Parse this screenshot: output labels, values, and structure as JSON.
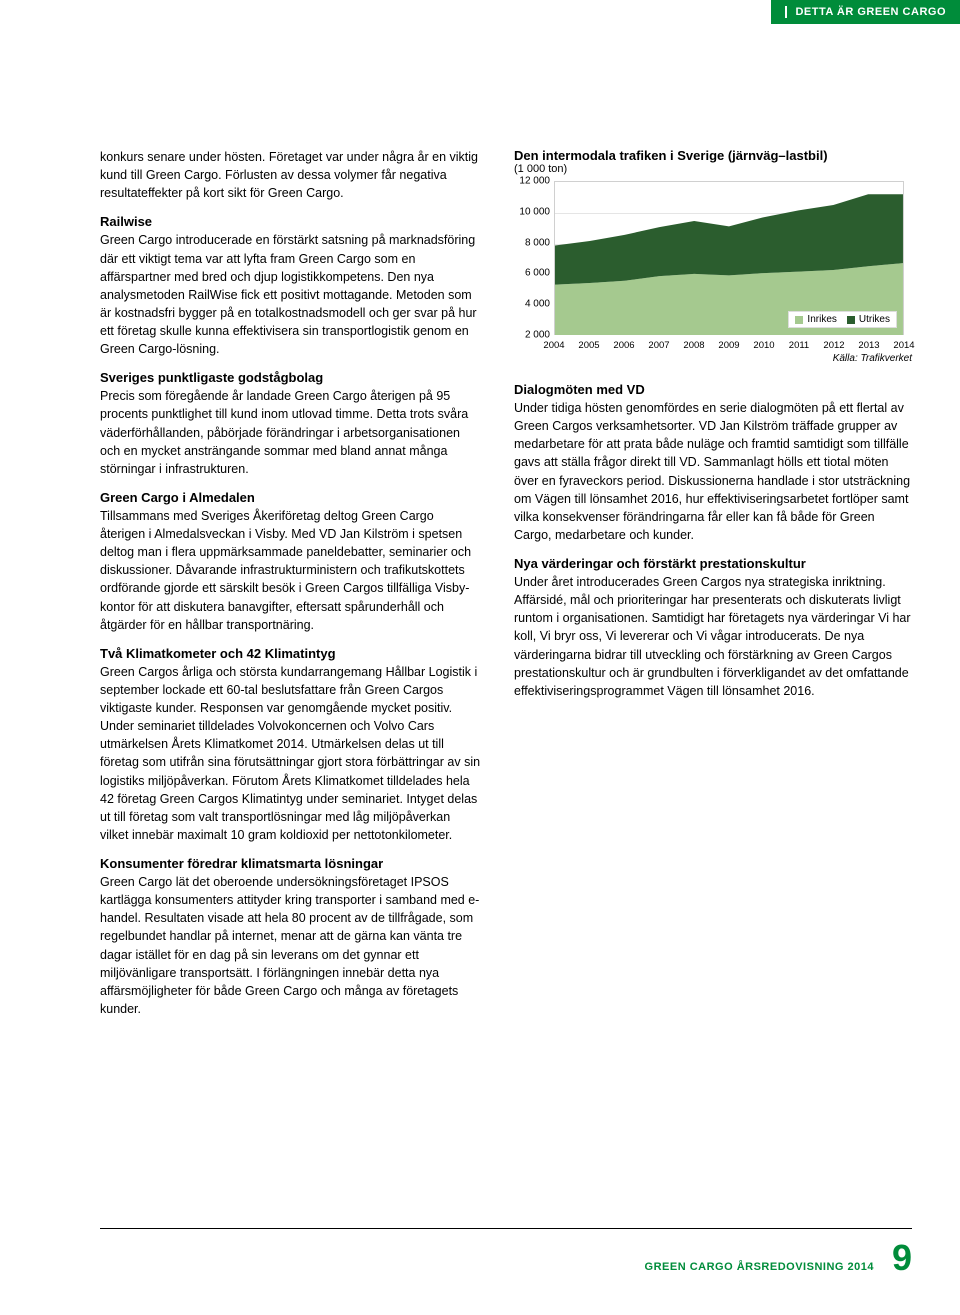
{
  "header": {
    "tab_text": "DETTA ÄR GREEN CARGO"
  },
  "left_column": {
    "intro": "konkurs senare under hösten. Företaget var under några år en viktig kund till Green Cargo. Förlusten av dessa volymer får negativa resultateffekter på kort sikt för Green Cargo.",
    "railwise_title": "Railwise",
    "railwise_body": "Green Cargo introducerade en förstärkt satsning på marknadsföring där ett viktigt tema var att lyfta fram Green Cargo som en affärspartner med bred och djup logistikkompetens. Den nya analysmetoden RailWise fick ett positivt mottagande. Metoden som är kostnadsfri bygger på en totalkostnadsmodell och ger svar på hur ett företag skulle kunna effektivisera sin transportlogistik genom en Green Cargo-lösning.",
    "punkt_title": "Sveriges punktligaste godstågbolag",
    "punkt_body": "Precis som föregående år landade Green Cargo återigen på 95 procents punktlighet till kund inom utlovad timme. Detta trots svåra väderförhållanden, påbörjade förändringar i arbetsorganisationen och en mycket ansträngande sommar med bland annat många störningar i infrastrukturen.",
    "almed_title": "Green Cargo i Almedalen",
    "almed_body": "Tillsammans med Sveriges Åkeriföretag deltog Green Cargo återigen i Almedalsveckan i Visby. Med VD Jan Kilström i spetsen deltog man i flera uppmärksammade paneldebatter, seminarier och diskussioner. Dåvarande infrastrukturministern och trafikutskottets ordförande gjorde ett särskilt besök i Green Cargos tillfälliga Visby-kontor för att diskutera banavgifter, eftersatt spårunderhåll och åtgärder för en hållbar transportnäring.",
    "klimat_title": "Två Klimatkometer och 42 Klimatintyg",
    "klimat_body": "Green Cargos årliga och största kundarrangemang Hållbar Logistik i september lockade ett 60-tal beslutsfattare från Green Cargos viktigaste kunder. Responsen var genomgående mycket positiv. Under seminariet tilldelades Volvokoncernen och Volvo Cars utmärkelsen Årets Klimatkomet 2014. Utmärkelsen delas ut till företag som utifrån sina förutsättningar gjort stora förbättringar av sin logistiks miljöpåverkan. Förutom Årets Klimatkomet tilldelades hela 42 företag Green Cargos Klimatintyg under seminariet. Intyget delas ut till företag som valt transportlösningar med låg miljöpåverkan vilket innebär maximalt 10 gram koldioxid per nettotonkilometer.",
    "kons_title": "Konsumenter föredrar klimatsmarta lösningar",
    "kons_body": "Green Cargo lät det oberoende undersökningsföretaget IPSOS kartlägga konsumenters attityder kring transporter i samband med e-handel. Resultaten visade att hela 80 procent av de tillfrågade, som regelbundet handlar på internet, menar att de gärna kan vänta tre dagar istället för en dag på sin leverans om det gynnar ett miljövänligare transportsätt. I förlängningen innebär detta nya affärsmöjligheter för både Green Cargo och många av företagets kunder."
  },
  "right_column": {
    "chart": {
      "title": "Den intermodala trafiken i Sverige (järnväg–lastbil)",
      "subtitle": "(1 000 ton)",
      "type": "stacked-area",
      "ylim": [
        2000,
        12000
      ],
      "ytick_step": 2000,
      "yticks": [
        "12 000",
        "10 000",
        "8 000",
        "6 000",
        "4 000",
        "2 000"
      ],
      "years": [
        "2004",
        "2005",
        "2006",
        "2007",
        "2008",
        "2009",
        "2010",
        "2011",
        "2012",
        "2013",
        "2014"
      ],
      "series": [
        {
          "name": "Inrikes",
          "color": "#a5c98f",
          "values": [
            5300,
            5400,
            5550,
            5850,
            6000,
            5900,
            6050,
            6150,
            6250,
            6500,
            6700
          ]
        },
        {
          "name": "Utrikes",
          "color": "#2b5d2e",
          "values": [
            2550,
            2750,
            3000,
            3200,
            3450,
            3200,
            3650,
            4000,
            4250,
            4700,
            4500
          ]
        }
      ],
      "background_color": "#ffffff",
      "grid_color": "#e5e5e5",
      "source": "Källa: Trafikverket",
      "legend_labels": {
        "inrikes": "Inrikes",
        "utrikes": "Utrikes"
      }
    },
    "dialog_title": "Dialogmöten med VD",
    "dialog_body": "Under tidiga hösten genomfördes en serie dialogmöten på ett flertal av Green Cargos verksamhetsorter. VD Jan Kilström träffade grupper av medarbetare för att prata både nuläge och framtid samtidigt som tillfälle gavs att ställa frågor direkt till VD. Sammanlagt hölls ett tiotal möten över en fyraveckors period. Diskussionerna handlade i stor utsträckning om Vägen till lönsamhet 2016, hur effektiviseringsarbetet fortlöper samt vilka konsekvenser förändringarna får eller kan få både för Green Cargo, medarbetare och kunder.",
    "vard_title": "Nya värderingar och förstärkt prestationskultur",
    "vard_body": "Under året introducerades Green Cargos nya strategiska inriktning. Affärsidé, mål och prioriteringar har presenterats och diskuterats livligt runtom i organisationen. Samtidigt har företagets nya värderingar Vi har koll, Vi bryr oss, Vi levererar och Vi vågar introducerats. De nya värderingarna bidrar till utveckling och förstärkning av Green Cargos prestationskultur och är grundbulten i förverkligandet av det omfattande effektiviseringsprogrammet Vägen till lönsamhet 2016."
  },
  "footer": {
    "text": "GREEN CARGO ÅRSREDOVISNING 2014",
    "page": "9"
  }
}
